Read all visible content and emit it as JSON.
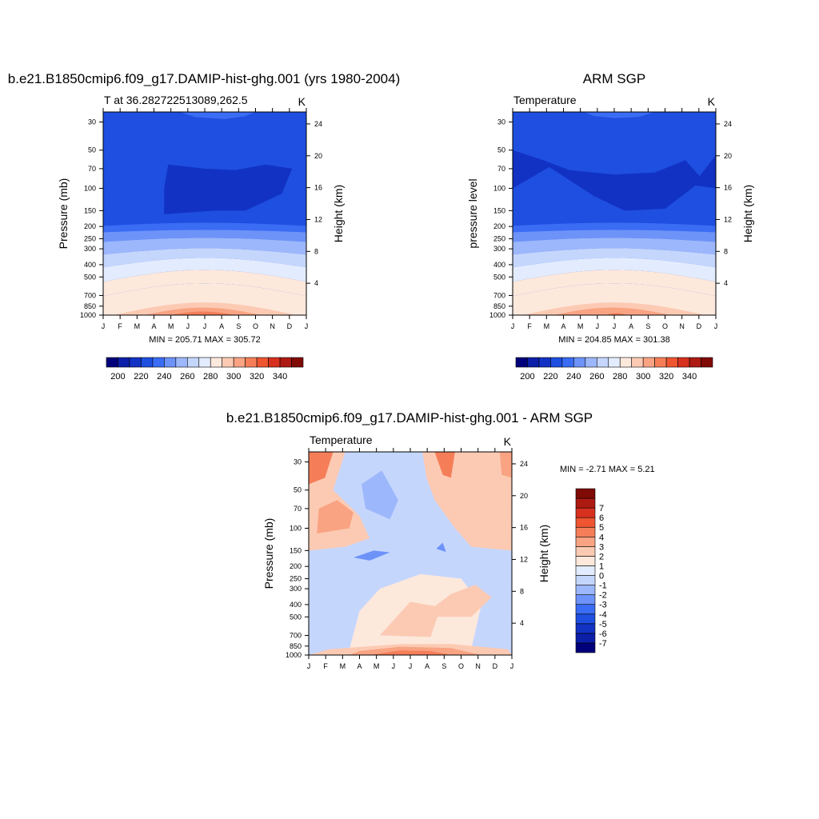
{
  "chart_data": [
    {
      "type": "heatmap",
      "title": "b.e21.B1850cmip6.f09_g17.DAMIP-hist-ghg.001 (yrs 1980-2004)",
      "subtitle_left": "T at 36.282722513089,262.5",
      "units": "K",
      "ylabel": "Pressure (mb)",
      "ylabel_right": "Height (km)",
      "x_ticks": [
        "J",
        "F",
        "M",
        "A",
        "M",
        "J",
        "J",
        "A",
        "S",
        "O",
        "N",
        "D",
        "J"
      ],
      "y_ticks": [
        30,
        50,
        70,
        100,
        150,
        200,
        250,
        300,
        400,
        500,
        700,
        850,
        1000
      ],
      "y_ticks_right": [
        24,
        20,
        16,
        12,
        8,
        4
      ],
      "ylim": [
        1000,
        25
      ],
      "log_scale_y": true,
      "stats": "MIN = 205.71 MAX = 305.72",
      "colorbar": {
        "orientation": "horizontal",
        "levels": [
          200,
          210,
          220,
          230,
          240,
          250,
          260,
          270,
          280,
          290,
          300,
          310,
          320,
          330,
          340
        ],
        "labels": [
          "200",
          "220",
          "240",
          "260",
          "280",
          "300",
          "320",
          "340"
        ],
        "colors": [
          "#00007a",
          "#0c1fa8",
          "#1232c3",
          "#1e4fe0",
          "#3a6cf4",
          "#6d93f9",
          "#9cb7fb",
          "#c5d6fd",
          "#e3ecfe",
          "#fde8dc",
          "#fccab3",
          "#f9a383",
          "#f57e58",
          "#ee5530",
          "#d7301f",
          "#ad1a12",
          "#800a05"
        ]
      }
    },
    {
      "type": "heatmap",
      "title": "ARM SGP",
      "subtitle_left": "Temperature",
      "units": "K",
      "ylabel": "pressure level",
      "ylabel_right": "Height (km)",
      "x_ticks": [
        "J",
        "F",
        "M",
        "A",
        "M",
        "J",
        "J",
        "A",
        "S",
        "O",
        "N",
        "D",
        "J"
      ],
      "y_ticks": [
        30,
        50,
        70,
        100,
        150,
        200,
        250,
        300,
        400,
        500,
        700,
        850,
        1000
      ],
      "y_ticks_right": [
        24,
        20,
        16,
        12,
        8,
        4
      ],
      "ylim": [
        1000,
        25
      ],
      "log_scale_y": true,
      "stats": "MIN = 204.85 MAX = 301.38",
      "colorbar": {
        "orientation": "horizontal",
        "levels": [
          200,
          210,
          220,
          230,
          240,
          250,
          260,
          270,
          280,
          290,
          300,
          310,
          320,
          330,
          340
        ],
        "labels": [
          "200",
          "220",
          "240",
          "260",
          "280",
          "300",
          "320",
          "340"
        ],
        "colors": [
          "#00007a",
          "#0c1fa8",
          "#1232c3",
          "#1e4fe0",
          "#3a6cf4",
          "#6d93f9",
          "#9cb7fb",
          "#c5d6fd",
          "#e3ecfe",
          "#fde8dc",
          "#fccab3",
          "#f9a383",
          "#f57e58",
          "#ee5530",
          "#d7301f",
          "#ad1a12",
          "#800a05"
        ]
      }
    },
    {
      "type": "heatmap",
      "title": "b.e21.B1850cmip6.f09_g17.DAMIP-hist-ghg.001 - ARM SGP",
      "subtitle_left": "Temperature",
      "units": "K",
      "ylabel": "Pressure (mb)",
      "ylabel_right": "Height (km)",
      "x_ticks": [
        "J",
        "F",
        "M",
        "A",
        "M",
        "J",
        "J",
        "A",
        "S",
        "O",
        "N",
        "D",
        "J"
      ],
      "y_ticks": [
        30,
        50,
        70,
        100,
        150,
        200,
        250,
        300,
        400,
        500,
        700,
        850,
        1000
      ],
      "y_ticks_right": [
        24,
        20,
        16,
        12,
        8,
        4
      ],
      "ylim": [
        1000,
        25
      ],
      "log_scale_y": true,
      "stats": "MIN =  -2.71 MAX =   5.21",
      "colorbar": {
        "orientation": "vertical",
        "levels": [
          -7,
          -6,
          -5,
          -4,
          -3,
          -2,
          -1,
          0,
          1,
          2,
          3,
          4,
          5,
          6,
          7
        ],
        "labels": [
          "-7",
          "-6",
          "-5",
          "-4",
          "-3",
          "-2",
          "-1",
          "0",
          "1",
          "2",
          "3",
          "4",
          "5",
          "6",
          "7"
        ],
        "colors": [
          "#00007a",
          "#0c1fa8",
          "#1232c3",
          "#1e4fe0",
          "#3a6cf4",
          "#6d93f9",
          "#9cb7fb",
          "#c5d6fd",
          "#e3ecfe",
          "#fde8dc",
          "#fccab3",
          "#f9a383",
          "#f57e58",
          "#ee5530",
          "#d7301f",
          "#ad1a12",
          "#800a05"
        ]
      }
    }
  ]
}
